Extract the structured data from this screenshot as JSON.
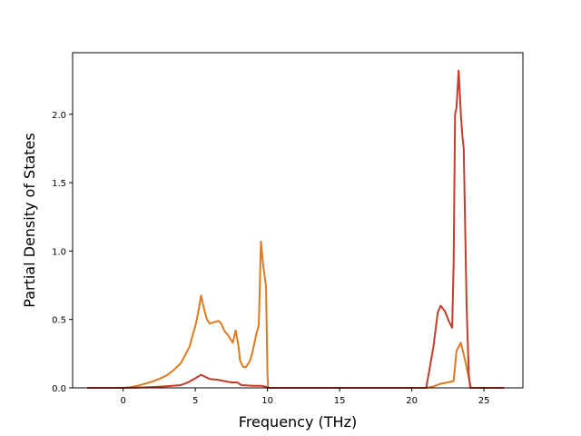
{
  "chart_data": {
    "type": "line",
    "title": "",
    "xlabel": "Frequency (THz)",
    "ylabel": "Partial Density of States",
    "xlim": [
      -3.5,
      27.7
    ],
    "ylim": [
      0,
      2.45
    ],
    "xticks": [
      0,
      5,
      10,
      15,
      20,
      25
    ],
    "yticks": [
      0.0,
      0.5,
      1.0,
      1.5,
      2.0
    ],
    "xtick_labels": [
      "0",
      "5",
      "10",
      "15",
      "20",
      "25"
    ],
    "ytick_labels": [
      "0.0",
      "0.5",
      "1.0",
      "1.5",
      "2.0"
    ],
    "grid": false,
    "legend": "none",
    "series": [
      {
        "color": "#e07a1f",
        "points": [
          [
            -2.5,
            0
          ],
          [
            0,
            0
          ],
          [
            0.5,
            0.005
          ],
          [
            1,
            0.015
          ],
          [
            1.5,
            0.03
          ],
          [
            2,
            0.045
          ],
          [
            2.5,
            0.065
          ],
          [
            3,
            0.09
          ],
          [
            3.5,
            0.13
          ],
          [
            4,
            0.18
          ],
          [
            4.3,
            0.24
          ],
          [
            4.6,
            0.3
          ],
          [
            4.8,
            0.38
          ],
          [
            5.0,
            0.45
          ],
          [
            5.2,
            0.55
          ],
          [
            5.4,
            0.675
          ],
          [
            5.6,
            0.58
          ],
          [
            5.8,
            0.5
          ],
          [
            6.0,
            0.47
          ],
          [
            6.3,
            0.48
          ],
          [
            6.6,
            0.49
          ],
          [
            6.8,
            0.47
          ],
          [
            7.0,
            0.42
          ],
          [
            7.3,
            0.38
          ],
          [
            7.6,
            0.33
          ],
          [
            7.8,
            0.42
          ],
          [
            8.0,
            0.3
          ],
          [
            8.1,
            0.2
          ],
          [
            8.3,
            0.155
          ],
          [
            8.5,
            0.15
          ],
          [
            8.8,
            0.2
          ],
          [
            9.0,
            0.28
          ],
          [
            9.2,
            0.38
          ],
          [
            9.4,
            0.46
          ],
          [
            9.55,
            1.07
          ],
          [
            9.7,
            0.9
          ],
          [
            9.9,
            0.74
          ],
          [
            10.0,
            0.1
          ],
          [
            10.05,
            0
          ],
          [
            21,
            0
          ],
          [
            21.5,
            0.01
          ],
          [
            22,
            0.03
          ],
          [
            22.5,
            0.04
          ],
          [
            22.9,
            0.05
          ],
          [
            23.1,
            0.27
          ],
          [
            23.4,
            0.33
          ],
          [
            23.7,
            0.2
          ],
          [
            24.0,
            0.05
          ],
          [
            24.1,
            0
          ],
          [
            25,
            0
          ],
          [
            26.4,
            0
          ]
        ]
      },
      {
        "color": "#c43c2c",
        "points": [
          [
            -2.5,
            0
          ],
          [
            0,
            0
          ],
          [
            1,
            0.002
          ],
          [
            2,
            0.006
          ],
          [
            3,
            0.012
          ],
          [
            4,
            0.02
          ],
          [
            4.5,
            0.04
          ],
          [
            5.0,
            0.07
          ],
          [
            5.4,
            0.095
          ],
          [
            5.8,
            0.075
          ],
          [
            6.0,
            0.065
          ],
          [
            6.5,
            0.06
          ],
          [
            7.0,
            0.05
          ],
          [
            7.5,
            0.04
          ],
          [
            7.9,
            0.04
          ],
          [
            8.2,
            0.02
          ],
          [
            9.0,
            0.015
          ],
          [
            9.6,
            0.015
          ],
          [
            10.0,
            0.005
          ],
          [
            10.05,
            0
          ],
          [
            21.0,
            0
          ],
          [
            21.2,
            0.12
          ],
          [
            21.5,
            0.3
          ],
          [
            21.8,
            0.55
          ],
          [
            22.0,
            0.6
          ],
          [
            22.3,
            0.56
          ],
          [
            22.6,
            0.48
          ],
          [
            22.8,
            0.44
          ],
          [
            22.9,
            0.9
          ],
          [
            23.0,
            2.0
          ],
          [
            23.1,
            2.05
          ],
          [
            23.25,
            2.32
          ],
          [
            23.4,
            2.0
          ],
          [
            23.5,
            1.85
          ],
          [
            23.6,
            1.75
          ],
          [
            23.8,
            0.6
          ],
          [
            23.95,
            0.1
          ],
          [
            24.05,
            0
          ],
          [
            25,
            0
          ],
          [
            26.4,
            0
          ]
        ]
      }
    ]
  }
}
